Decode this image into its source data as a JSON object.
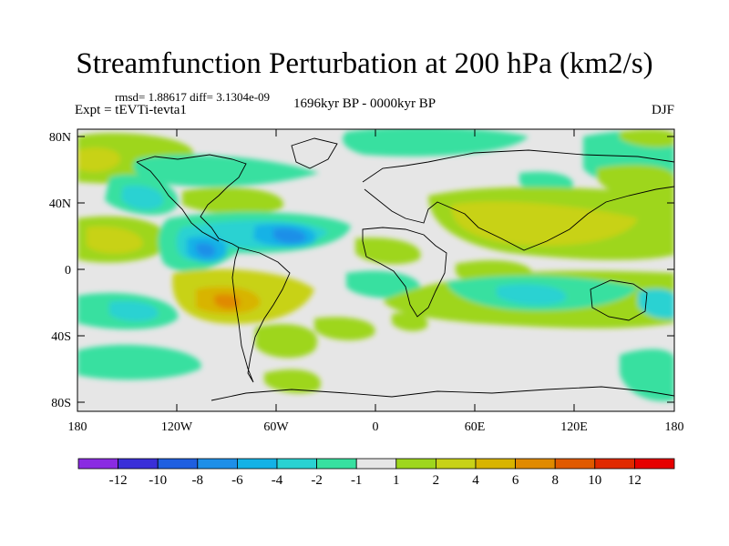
{
  "figure": {
    "title": "Streamfunction Perturbation at 200 hPa (km2/s)",
    "stats": "rmsd= 1.88617 diff= 3.1304e-09",
    "experiment": "Expt = tEVTi-tevta1",
    "period": "1696kyr BP - 0000kyr BP",
    "season": "DJF"
  },
  "axes": {
    "lat_ticks": [
      "80N",
      "40N",
      "0",
      "40S",
      "80S"
    ],
    "lon_ticks": [
      "180",
      "120W",
      "60W",
      "0",
      "60E",
      "120E",
      "180"
    ]
  },
  "colorbar": {
    "labels": [
      "-12",
      "-10",
      "-8",
      "-6",
      "-4",
      "-2",
      "-1",
      "1",
      "2",
      "4",
      "6",
      "8",
      "10",
      "12"
    ],
    "colors": [
      "#8a2be2",
      "#3a2fd8",
      "#1f5fe0",
      "#1e8fe8",
      "#14b2e6",
      "#2ad2d2",
      "#38e0a0",
      "#e6e6e6",
      "#9ed61e",
      "#c8d218",
      "#d8b400",
      "#e08a00",
      "#e05a00",
      "#e02a00",
      "#e60000"
    ]
  }
}
